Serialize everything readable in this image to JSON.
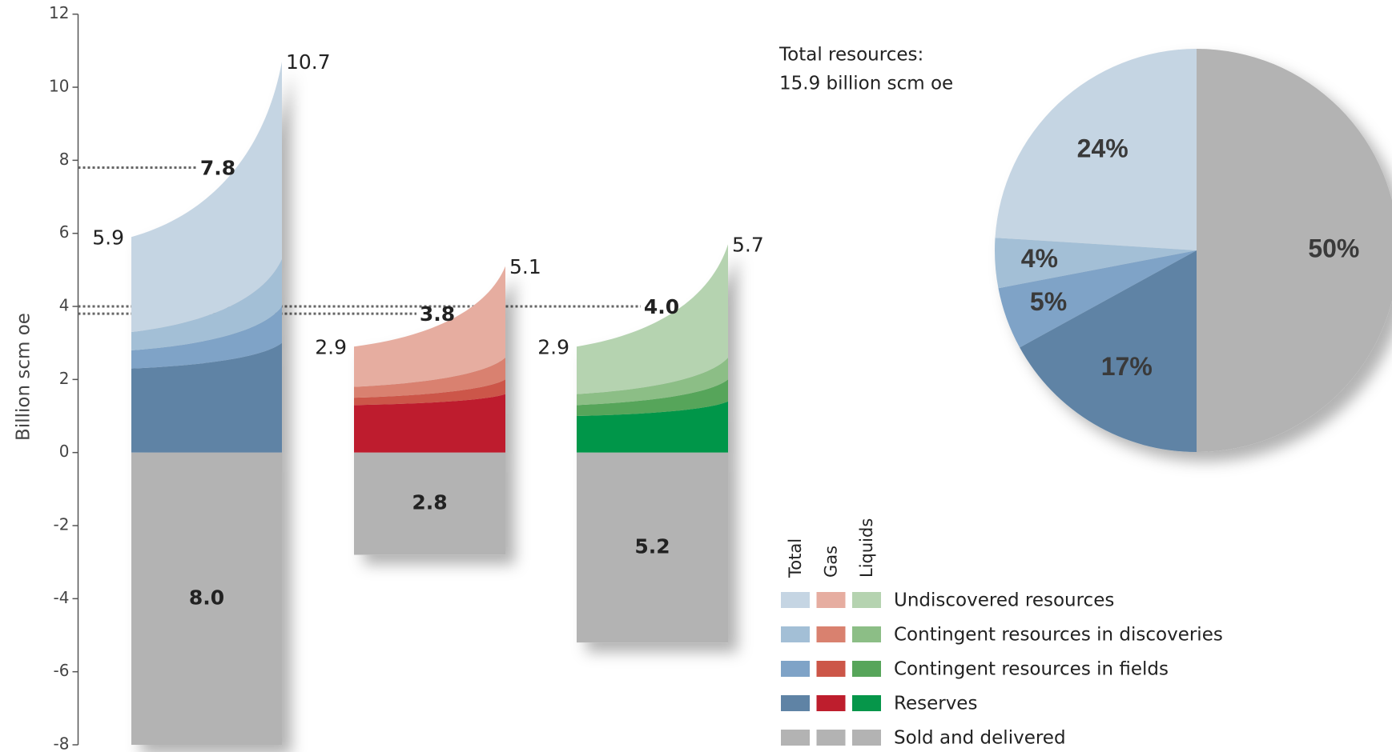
{
  "chart_data": [
    {
      "type": "flared_bar",
      "y_label": "Billion scm oe",
      "ylim": [
        -8,
        12
      ],
      "yticks": [
        -8,
        -6,
        -4,
        -2,
        0,
        2,
        4,
        6,
        8,
        10,
        12
      ],
      "groups": [
        "Total",
        "Gas",
        "Liquids"
      ],
      "series": [
        {
          "name": "Undiscovered resources",
          "colors": [
            "#c5d5e3",
            "#e6ada0",
            "#b5d3b0"
          ],
          "left": [
            2.6,
            1.1,
            1.3
          ],
          "right": [
            5.4,
            2.5,
            3.1
          ]
        },
        {
          "name": "Contingent resources in discoveries",
          "colors": [
            "#a3bfd6",
            "#d9816f",
            "#8cbe86"
          ],
          "left": [
            0.5,
            0.3,
            0.3
          ],
          "right": [
            1.3,
            0.6,
            0.6
          ]
        },
        {
          "name": "Contingent resources in fields",
          "colors": [
            "#7fa3c7",
            "#cc5648",
            "#57a55a"
          ],
          "left": [
            0.5,
            0.2,
            0.3
          ],
          "right": [
            1.0,
            0.4,
            0.6
          ]
        },
        {
          "name": "Reserves",
          "colors": [
            "#5f83a5",
            "#be1e2d",
            "#06964a"
          ],
          "left": [
            2.3,
            1.3,
            1.0
          ],
          "right": [
            3.0,
            1.6,
            1.4
          ]
        },
        {
          "name": "Sold and delivered",
          "colors": [
            "#b3b3b3",
            "#b3b3b3",
            "#b3b3b3"
          ],
          "values": [
            -8.0,
            -2.8,
            -5.2
          ],
          "value_labels": [
            "8.0",
            "2.8",
            "5.2"
          ]
        }
      ],
      "left_totals": [
        5.9,
        2.9,
        2.9
      ],
      "right_totals": [
        10.7,
        5.1,
        5.7
      ],
      "expected": [
        7.8,
        3.8,
        4.0
      ],
      "expected_labels": [
        "7.8",
        "3.8",
        "4.0"
      ]
    },
    {
      "type": "pie",
      "annotations": [
        "Total resources:",
        "15.9 billion scm oe"
      ],
      "categories": [
        "Sold and delivered",
        "Reserves",
        "Contingent resources in fields",
        "Contingent resources in discoveries",
        "Undiscovered resources"
      ],
      "values": [
        50,
        17,
        5,
        4,
        24
      ],
      "value_labels": [
        "50%",
        "17%",
        "5%",
        "4%",
        "24%"
      ],
      "colors": [
        "#b3b3b3",
        "#5f83a5",
        "#7fa3c7",
        "#a3bfd6",
        "#c5d5e3"
      ]
    }
  ]
}
